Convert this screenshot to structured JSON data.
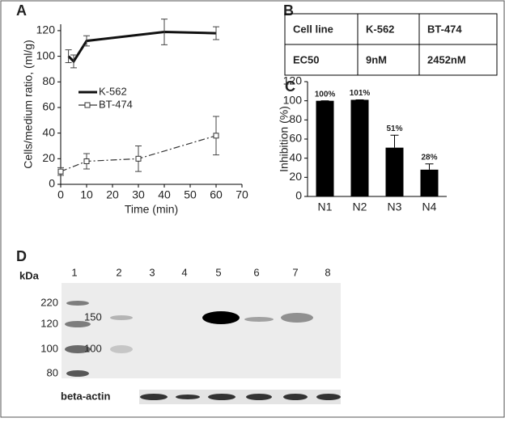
{
  "chart_data": [
    {
      "type": "line",
      "panel": "A",
      "xlabel": "Time (min)",
      "ylabel": "Cells/medium ratio, (ml/g)",
      "xlim": [
        0,
        70
      ],
      "xticks": [
        0,
        10,
        20,
        30,
        40,
        50,
        60,
        70
      ],
      "ylim": [
        0,
        125
      ],
      "yticks": [
        0,
        20,
        40,
        60,
        80,
        100,
        120
      ],
      "series": [
        {
          "name": "K-562",
          "color": "#111111",
          "linestyle": "solid",
          "marker": "none",
          "x": [
            3,
            5,
            10,
            40,
            60
          ],
          "values": [
            100,
            96,
            112,
            119,
            118
          ],
          "errors": [
            5,
            5,
            4,
            10,
            5
          ]
        },
        {
          "name": "BT-474",
          "color": "#333333",
          "linestyle": "dashed",
          "marker": "square",
          "x": [
            0,
            10,
            30,
            60
          ],
          "values": [
            10,
            18,
            20,
            38
          ],
          "errors": [
            3,
            6,
            10,
            15
          ]
        }
      ]
    },
    {
      "type": "bar",
      "panel": "C",
      "ylabel": "Inhibition (%)",
      "color": "#000000",
      "categories": [
        "N1",
        "N2",
        "N3",
        "N4"
      ],
      "values": [
        100,
        101,
        51,
        28
      ],
      "value_labels": [
        "100%",
        "101%",
        "51%",
        "28%"
      ],
      "errors": [
        0,
        0,
        13,
        6
      ],
      "ylim": [
        0,
        120
      ],
      "yticks": [
        0,
        20,
        40,
        60,
        80,
        100,
        120
      ]
    }
  ],
  "table": {
    "panel": "B",
    "rows": [
      [
        "Cell line",
        "K-562",
        "BT-474"
      ],
      [
        "EC50",
        "9nM",
        "2452nM"
      ]
    ]
  },
  "blot": {
    "panel": "D",
    "unit": "kDa",
    "lanes": [
      "1",
      "2",
      "3",
      "4",
      "5",
      "6",
      "7",
      "8"
    ],
    "markers": [
      "220",
      "120",
      "100",
      "80"
    ],
    "inner_markers": [
      "150",
      "100"
    ],
    "loading_control": "beta-actin"
  }
}
